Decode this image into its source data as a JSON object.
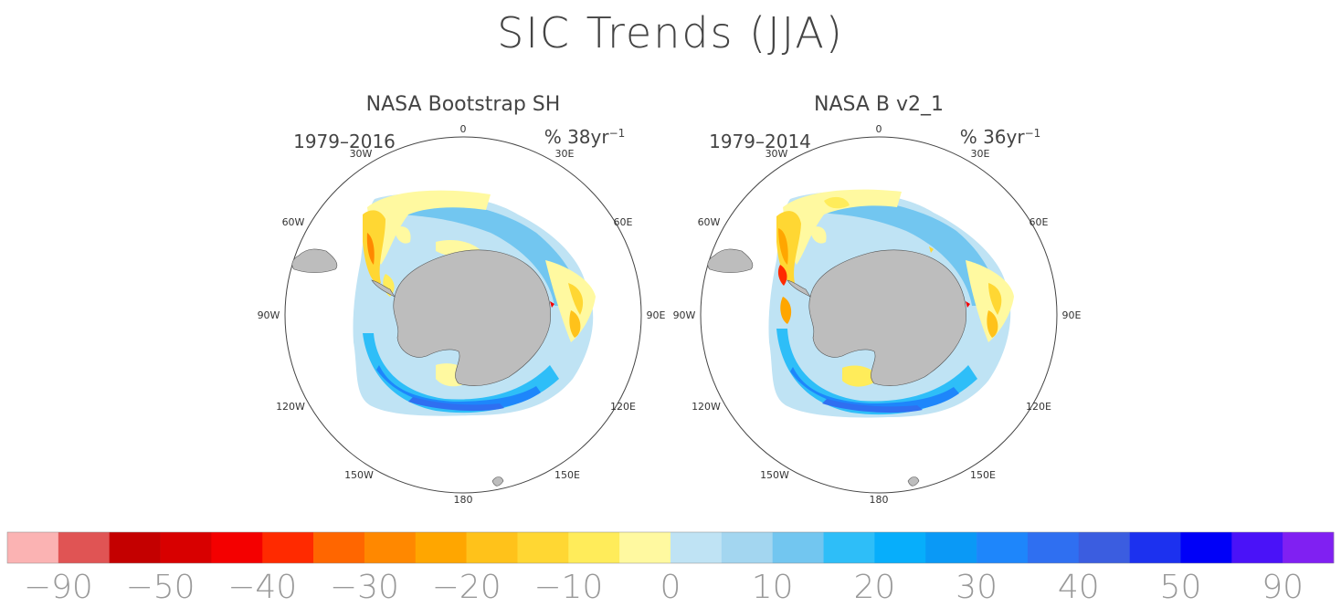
{
  "title": "SIC Trends (JJA)",
  "panels": [
    {
      "name": "NASA Bootstrap SH",
      "period": "1979–2016",
      "units": "% 38yr",
      "units_exp": "−1",
      "lon_labels": [
        "0",
        "30E",
        "60E",
        "90E",
        "120E",
        "150E",
        "180",
        "150W",
        "120W",
        "90W",
        "60W",
        "30W"
      ],
      "land_color": "#bdbdbd"
    },
    {
      "name": "NASA B v2_1",
      "period": "1979–2014",
      "units": "% 36yr",
      "units_exp": "−1",
      "lon_labels": [
        "0",
        "30E",
        "60E",
        "90E",
        "120E",
        "150E",
        "180",
        "150W",
        "120W",
        "90W",
        "60W",
        "30W"
      ],
      "land_color": "#bdbdbd"
    }
  ],
  "colorbar": {
    "colors": [
      "#fbb3b3",
      "#e05454",
      "#c40000",
      "#d80000",
      "#f40000",
      "#ff2a00",
      "#ff6600",
      "#ff8800",
      "#ffa600",
      "#ffc21a",
      "#ffd733",
      "#ffec5a",
      "#fff9a0",
      "#bfe3f4",
      "#a3d6f0",
      "#72c6f0",
      "#2ebef8",
      "#07aefb",
      "#0a99f6",
      "#1e86fb",
      "#2f6ff1",
      "#3b5de0",
      "#1c31ef",
      "#0000f8",
      "#4a12f8",
      "#8020f2"
    ],
    "labels": [
      "−90",
      "−50",
      "−40",
      "−30",
      "−20",
      "−10",
      "0",
      "10",
      "20",
      "30",
      "40",
      "50",
      "90"
    ]
  }
}
